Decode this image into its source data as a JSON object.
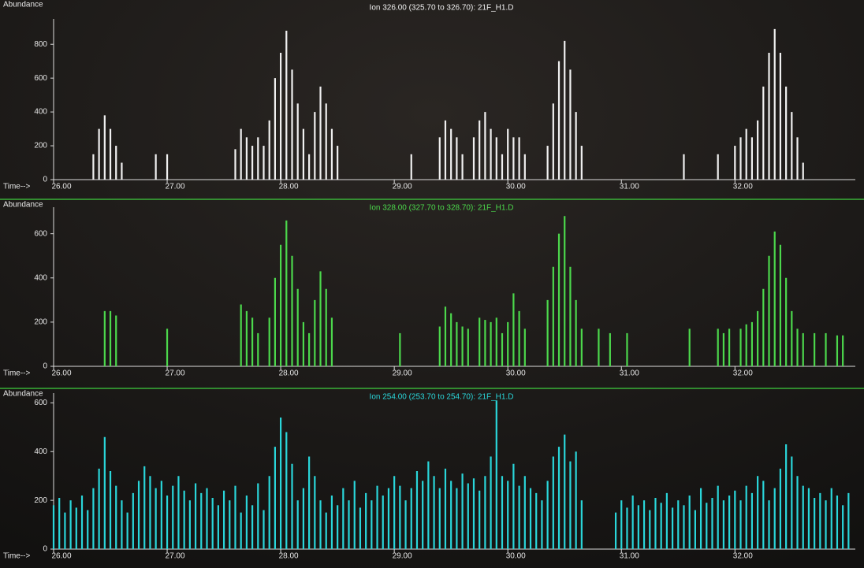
{
  "chart_data": [
    {
      "type": "bar",
      "title": "Ion 326.00 (325.70 to 326.70): 21F_H1.D",
      "y_label": "Abundance",
      "x_label": "Time-->",
      "color": "#f0f0f0",
      "xlim": [
        26,
        33.06
      ],
      "ylim": [
        0,
        950
      ],
      "xticks": [
        {
          "value": 26,
          "label": "26.00"
        },
        {
          "value": 27,
          "label": "27.00"
        },
        {
          "value": 28,
          "label": "28.00"
        },
        {
          "value": 29,
          "label": "29.00"
        },
        {
          "value": 30,
          "label": "30.00"
        },
        {
          "value": 31,
          "label": "31.00"
        },
        {
          "value": 32,
          "label": "32.00"
        }
      ],
      "yticks": [
        0,
        200,
        400,
        600,
        800
      ],
      "x": [
        26,
        26.05,
        26.1,
        26.15,
        26.2,
        26.25,
        26.3,
        26.35,
        26.4,
        26.45,
        26.5,
        26.55,
        26.6,
        26.65,
        26.7,
        26.75,
        26.8,
        26.85,
        26.9,
        26.95,
        27,
        27.05,
        27.1,
        27.15,
        27.2,
        27.25,
        27.3,
        27.35,
        27.4,
        27.45,
        27.5,
        27.55,
        27.6,
        27.65,
        27.7,
        27.75,
        27.8,
        27.85,
        27.9,
        27.95,
        28,
        28.05,
        28.1,
        28.15,
        28.2,
        28.25,
        28.3,
        28.35,
        28.4,
        28.45,
        28.5,
        28.55,
        28.6,
        28.65,
        28.7,
        28.75,
        28.8,
        28.85,
        28.9,
        28.95,
        29,
        29.05,
        29.1,
        29.15,
        29.2,
        29.25,
        29.3,
        29.35,
        29.4,
        29.45,
        29.5,
        29.55,
        29.6,
        29.65,
        29.7,
        29.75,
        29.8,
        29.85,
        29.9,
        29.95,
        30,
        30.05,
        30.1,
        30.15,
        30.2,
        30.25,
        30.3,
        30.35,
        30.4,
        30.45,
        30.5,
        30.55,
        30.6,
        30.65,
        30.7,
        30.75,
        30.8,
        30.85,
        30.9,
        30.95,
        31,
        31.05,
        31.1,
        31.15,
        31.2,
        31.25,
        31.3,
        31.35,
        31.4,
        31.45,
        31.5,
        31.55,
        31.6,
        31.65,
        31.7,
        31.75,
        31.8,
        31.85,
        31.9,
        31.95,
        32,
        32.05,
        32.1,
        32.15,
        32.2,
        32.25,
        32.3,
        32.35,
        32.4,
        32.45,
        32.5,
        32.55,
        32.6,
        32.65,
        32.7,
        32.75,
        32.8,
        32.85,
        32.9,
        32.95,
        33
      ],
      "values": [
        0,
        0,
        0,
        0,
        0,
        0,
        0,
        150,
        300,
        380,
        300,
        200,
        100,
        0,
        0,
        0,
        0,
        0,
        150,
        0,
        150,
        0,
        0,
        0,
        0,
        0,
        0,
        0,
        0,
        0,
        0,
        0,
        180,
        300,
        250,
        200,
        250,
        200,
        350,
        600,
        750,
        880,
        650,
        450,
        300,
        150,
        400,
        550,
        450,
        300,
        200,
        0,
        0,
        0,
        0,
        0,
        0,
        0,
        0,
        0,
        0,
        0,
        0,
        150,
        0,
        0,
        0,
        0,
        250,
        350,
        300,
        250,
        150,
        0,
        250,
        350,
        400,
        300,
        250,
        150,
        300,
        250,
        250,
        150,
        0,
        0,
        0,
        200,
        450,
        700,
        820,
        650,
        400,
        200,
        0,
        0,
        0,
        0,
        0,
        0,
        0,
        0,
        0,
        0,
        0,
        0,
        0,
        0,
        0,
        0,
        0,
        150,
        0,
        0,
        0,
        0,
        0,
        150,
        0,
        0,
        200,
        250,
        300,
        250,
        350,
        550,
        750,
        890,
        750,
        550,
        400,
        250,
        100,
        0,
        0,
        0,
        0,
        0,
        0,
        0,
        0
      ]
    },
    {
      "type": "bar",
      "title": "Ion 328.00 (327.70 to 328.70): 21F_H1.D",
      "y_label": "Abundance",
      "x_label": "Time-->",
      "color": "#4cd84c",
      "xlim": [
        26,
        33.06
      ],
      "ylim": [
        0,
        720
      ],
      "xticks": [
        {
          "value": 26,
          "label": "26.00"
        },
        {
          "value": 27,
          "label": "27.00"
        },
        {
          "value": 28,
          "label": "28.00"
        },
        {
          "value": 29,
          "label": "29.00"
        },
        {
          "value": 30,
          "label": "30.00"
        },
        {
          "value": 31,
          "label": "31.00"
        },
        {
          "value": 32,
          "label": "32.00"
        }
      ],
      "yticks": [
        0,
        200,
        400,
        600
      ],
      "x": [
        26,
        26.05,
        26.1,
        26.15,
        26.2,
        26.25,
        26.3,
        26.35,
        26.4,
        26.45,
        26.5,
        26.55,
        26.6,
        26.65,
        26.7,
        26.75,
        26.8,
        26.85,
        26.9,
        26.95,
        27,
        27.05,
        27.1,
        27.15,
        27.2,
        27.25,
        27.3,
        27.35,
        27.4,
        27.45,
        27.5,
        27.55,
        27.6,
        27.65,
        27.7,
        27.75,
        27.8,
        27.85,
        27.9,
        27.95,
        28,
        28.05,
        28.1,
        28.15,
        28.2,
        28.25,
        28.3,
        28.35,
        28.4,
        28.45,
        28.5,
        28.55,
        28.6,
        28.65,
        28.7,
        28.75,
        28.8,
        28.85,
        28.9,
        28.95,
        29,
        29.05,
        29.1,
        29.15,
        29.2,
        29.25,
        29.3,
        29.35,
        29.4,
        29.45,
        29.5,
        29.55,
        29.6,
        29.65,
        29.7,
        29.75,
        29.8,
        29.85,
        29.9,
        29.95,
        30,
        30.05,
        30.1,
        30.15,
        30.2,
        30.25,
        30.3,
        30.35,
        30.4,
        30.45,
        30.5,
        30.55,
        30.6,
        30.65,
        30.7,
        30.75,
        30.8,
        30.85,
        30.9,
        30.95,
        31,
        31.05,
        31.1,
        31.15,
        31.2,
        31.25,
        31.3,
        31.35,
        31.4,
        31.45,
        31.5,
        31.55,
        31.6,
        31.65,
        31.7,
        31.75,
        31.8,
        31.85,
        31.9,
        31.95,
        32,
        32.05,
        32.1,
        32.15,
        32.2,
        32.25,
        32.3,
        32.35,
        32.4,
        32.45,
        32.5,
        32.55,
        32.6,
        32.65,
        32.7,
        32.75,
        32.8,
        32.85,
        32.9,
        32.95,
        33
      ],
      "values": [
        0,
        0,
        0,
        0,
        0,
        0,
        0,
        0,
        0,
        250,
        250,
        230,
        0,
        0,
        0,
        0,
        0,
        0,
        0,
        0,
        170,
        0,
        0,
        0,
        0,
        0,
        0,
        0,
        0,
        0,
        0,
        0,
        0,
        280,
        250,
        220,
        150,
        0,
        220,
        400,
        550,
        660,
        500,
        350,
        200,
        150,
        300,
        430,
        350,
        220,
        0,
        0,
        0,
        0,
        0,
        0,
        0,
        0,
        0,
        0,
        0,
        150,
        0,
        0,
        0,
        0,
        0,
        0,
        180,
        270,
        240,
        200,
        180,
        170,
        0,
        220,
        210,
        200,
        220,
        150,
        200,
        330,
        250,
        170,
        0,
        0,
        0,
        300,
        450,
        600,
        680,
        450,
        300,
        170,
        0,
        0,
        170,
        0,
        150,
        0,
        0,
        150,
        0,
        0,
        0,
        0,
        0,
        0,
        0,
        0,
        0,
        0,
        170,
        0,
        0,
        0,
        0,
        170,
        150,
        170,
        0,
        170,
        190,
        200,
        250,
        350,
        500,
        610,
        550,
        400,
        250,
        170,
        150,
        0,
        150,
        0,
        150,
        0,
        140,
        140,
        0
      ]
    },
    {
      "type": "bar",
      "title": "Ion 254.00 (253.70 to 254.70): 21F_H1.D",
      "y_label": "Abundance",
      "x_label": "Time-->",
      "color": "#2ad6da",
      "xlim": [
        26,
        33.06
      ],
      "ylim": [
        0,
        640
      ],
      "xticks": [
        {
          "value": 26,
          "label": "26.00"
        },
        {
          "value": 27,
          "label": "27.00"
        },
        {
          "value": 28,
          "label": "28.00"
        },
        {
          "value": 29,
          "label": "29.00"
        },
        {
          "value": 30,
          "label": "30.00"
        },
        {
          "value": 31,
          "label": "31.00"
        },
        {
          "value": 32,
          "label": "32.00"
        }
      ],
      "yticks": [
        0,
        200,
        400,
        600
      ],
      "x": [
        26,
        26.05,
        26.1,
        26.15,
        26.2,
        26.25,
        26.3,
        26.35,
        26.4,
        26.45,
        26.5,
        26.55,
        26.6,
        26.65,
        26.7,
        26.75,
        26.8,
        26.85,
        26.9,
        26.95,
        27,
        27.05,
        27.1,
        27.15,
        27.2,
        27.25,
        27.3,
        27.35,
        27.4,
        27.45,
        27.5,
        27.55,
        27.6,
        27.65,
        27.7,
        27.75,
        27.8,
        27.85,
        27.9,
        27.95,
        28,
        28.05,
        28.1,
        28.15,
        28.2,
        28.25,
        28.3,
        28.35,
        28.4,
        28.45,
        28.5,
        28.55,
        28.6,
        28.65,
        28.7,
        28.75,
        28.8,
        28.85,
        28.9,
        28.95,
        29,
        29.05,
        29.1,
        29.15,
        29.2,
        29.25,
        29.3,
        29.35,
        29.4,
        29.45,
        29.5,
        29.55,
        29.6,
        29.65,
        29.7,
        29.75,
        29.8,
        29.85,
        29.9,
        29.95,
        30,
        30.05,
        30.1,
        30.15,
        30.2,
        30.25,
        30.3,
        30.35,
        30.4,
        30.45,
        30.5,
        30.55,
        30.6,
        30.65,
        30.7,
        30.75,
        30.8,
        30.85,
        30.9,
        30.95,
        31,
        31.05,
        31.1,
        31.15,
        31.2,
        31.25,
        31.3,
        31.35,
        31.4,
        31.45,
        31.5,
        31.55,
        31.6,
        31.65,
        31.7,
        31.75,
        31.8,
        31.85,
        31.9,
        31.95,
        32,
        32.05,
        32.1,
        32.15,
        32.2,
        32.25,
        32.3,
        32.35,
        32.4,
        32.45,
        32.5,
        32.55,
        32.6,
        32.65,
        32.7,
        32.75,
        32.8,
        32.85,
        32.9,
        32.95,
        33
      ],
      "values": [
        180,
        210,
        150,
        200,
        170,
        220,
        160,
        250,
        330,
        460,
        320,
        260,
        200,
        150,
        230,
        280,
        340,
        300,
        250,
        280,
        220,
        260,
        300,
        240,
        200,
        270,
        230,
        250,
        210,
        180,
        240,
        200,
        260,
        150,
        220,
        180,
        270,
        160,
        300,
        420,
        540,
        480,
        350,
        200,
        250,
        380,
        300,
        200,
        150,
        220,
        180,
        250,
        200,
        280,
        170,
        230,
        200,
        260,
        220,
        250,
        300,
        260,
        200,
        250,
        320,
        280,
        360,
        300,
        250,
        330,
        280,
        250,
        310,
        270,
        290,
        240,
        300,
        380,
        610,
        300,
        280,
        350,
        260,
        300,
        250,
        230,
        200,
        280,
        380,
        420,
        470,
        360,
        400,
        200,
        0,
        0,
        0,
        0,
        0,
        150,
        200,
        170,
        220,
        180,
        200,
        160,
        210,
        190,
        230,
        170,
        200,
        180,
        220,
        160,
        250,
        190,
        210,
        260,
        200,
        220,
        240,
        200,
        260,
        230,
        300,
        280,
        200,
        250,
        330,
        430,
        380,
        300,
        260,
        250,
        210,
        230,
        200,
        250,
        220,
        180,
        230
      ]
    }
  ]
}
